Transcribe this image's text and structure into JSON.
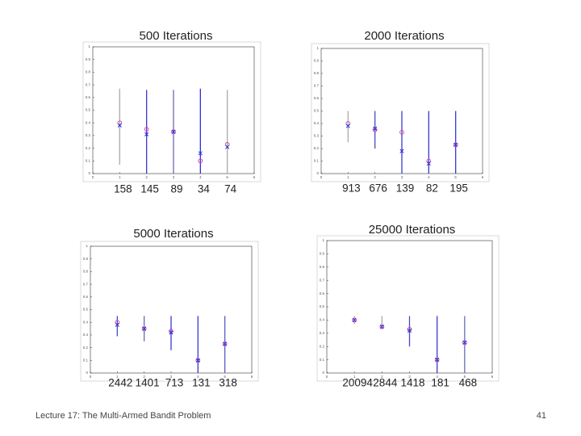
{
  "chart_data": [
    {
      "type": "errorbar",
      "title": "500 Iterations",
      "categories": [
        1,
        2,
        3,
        4,
        5
      ],
      "means": [
        0.4,
        0.35,
        0.33,
        0.1,
        0.23
      ],
      "estimates": [
        0.38,
        0.31,
        0.33,
        0.16,
        0.21
      ],
      "low": [
        0.07,
        0,
        0,
        0,
        0
      ],
      "high": [
        0.67,
        0.66,
        0.66,
        0.67,
        0.66
      ],
      "interval_colors": [
        "#aaaaaa",
        "#3a3ad0",
        "#6a6ab8",
        "#2f2fe0",
        "#aaaaaa"
      ],
      "counts": [
        158,
        145,
        89,
        34,
        74
      ],
      "xlim": [
        0,
        6
      ],
      "xticks": [
        0,
        1,
        2,
        3,
        4,
        5,
        6
      ],
      "ylim": [
        0,
        1
      ],
      "yticks": [
        0,
        0.1,
        0.2,
        0.3,
        0.4,
        0.5,
        0.6,
        0.7,
        0.8,
        0.9,
        1
      ]
    },
    {
      "type": "errorbar",
      "title": "2000 Iterations",
      "categories": [
        1,
        2,
        3,
        4,
        5
      ],
      "means": [
        0.4,
        0.35,
        0.33,
        0.1,
        0.23
      ],
      "estimates": [
        0.38,
        0.36,
        0.18,
        0.08,
        0.23
      ],
      "low": [
        0.25,
        0.2,
        0,
        0,
        0
      ],
      "high": [
        0.5,
        0.5,
        0.5,
        0.5,
        0.5
      ],
      "interval_colors": [
        "#aaaaaa",
        "#4a4ac0",
        "#3a3ad0",
        "#3a3ad0",
        "#3a3ad0"
      ],
      "counts": [
        913,
        676,
        139,
        82,
        195
      ],
      "xlim": [
        0,
        6
      ],
      "xticks": [
        0,
        1,
        2,
        3,
        4,
        5,
        6
      ],
      "ylim": [
        0,
        1
      ],
      "yticks": [
        0,
        0.1,
        0.2,
        0.3,
        0.4,
        0.5,
        0.6,
        0.7,
        0.8,
        0.9,
        1
      ]
    },
    {
      "type": "errorbar",
      "title": "5000 Iterations",
      "categories": [
        1,
        2,
        3,
        4,
        5
      ],
      "means": [
        0.4,
        0.35,
        0.33,
        0.1,
        0.23
      ],
      "estimates": [
        0.38,
        0.35,
        0.32,
        0.1,
        0.23
      ],
      "low": [
        0.29,
        0.25,
        0.18,
        0,
        0
      ],
      "high": [
        0.45,
        0.45,
        0.45,
        0.45,
        0.45
      ],
      "interval_colors": [
        "#4a4ac0",
        "#6a6ab8",
        "#3a3ad0",
        "#3a3ad0",
        "#5a5ac8"
      ],
      "counts": [
        2442,
        1401,
        713,
        131,
        318
      ],
      "xlim": [
        0,
        6
      ],
      "xticks": [
        0,
        1,
        2,
        3,
        4,
        5,
        6
      ],
      "ylim": [
        0,
        1
      ],
      "yticks": [
        0,
        0.1,
        0.2,
        0.3,
        0.4,
        0.5,
        0.6,
        0.7,
        0.8,
        0.9,
        1
      ]
    },
    {
      "type": "errorbar",
      "title": "25000 Iterations",
      "categories": [
        1,
        2,
        3,
        4,
        5
      ],
      "means": [
        0.4,
        0.35,
        0.33,
        0.1,
        0.23
      ],
      "estimates": [
        0.4,
        0.35,
        0.32,
        0.1,
        0.23
      ],
      "low": [
        0.37,
        0.33,
        0.2,
        0,
        0
      ],
      "high": [
        0.43,
        0.43,
        0.43,
        0.43,
        0.43
      ],
      "interval_colors": [
        "#aaaaaa",
        "#aaaaaa",
        "#4a4ac0",
        "#3a3ad0",
        "#6a6ab8"
      ],
      "counts": [
        20094,
        2844,
        1418,
        181,
        468
      ],
      "xlim": [
        0,
        6
      ],
      "xticks": [
        0,
        1,
        2,
        3,
        4,
        5,
        6
      ],
      "ylim": [
        0,
        1
      ],
      "yticks": [
        0,
        0.1,
        0.2,
        0.3,
        0.4,
        0.5,
        0.6,
        0.7,
        0.8,
        0.9,
        1
      ]
    }
  ],
  "footer": {
    "text": "Lecture 17: The Multi-Armed Bandit Problem",
    "page": 41
  }
}
